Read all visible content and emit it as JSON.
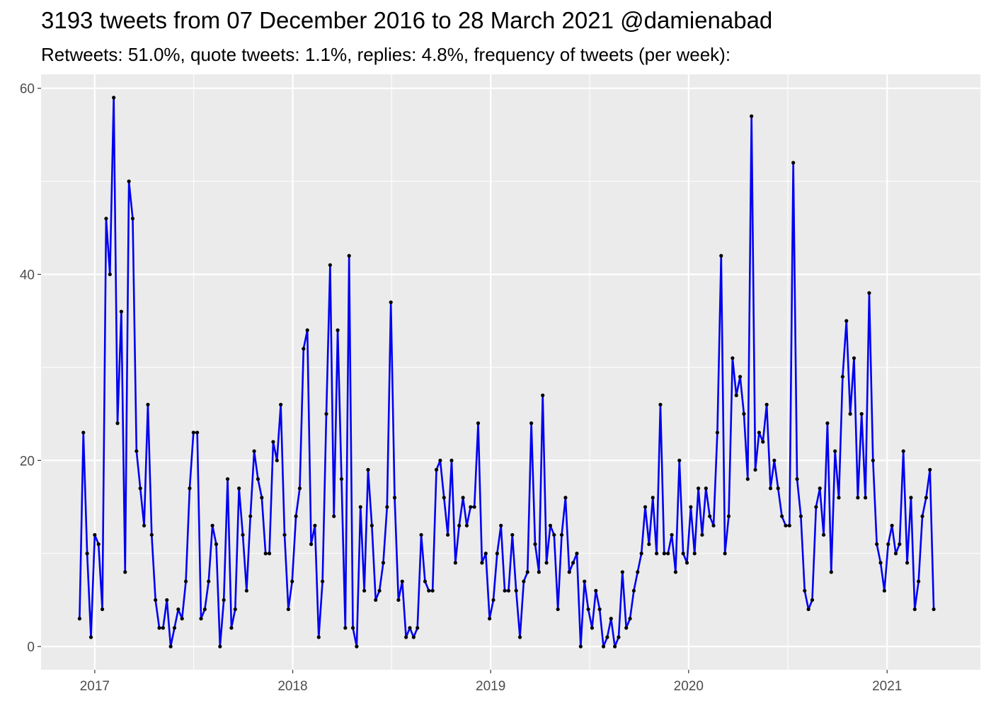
{
  "chart_data": {
    "type": "line",
    "title": "3193 tweets from 07 December 2016 to 28 March 2021 @damienabad",
    "subtitle": "Retweets: 51.0%, quote tweets: 1.1%, replies: 4.8%, frequency of tweets (per week):",
    "xlabel": "",
    "ylabel": "",
    "ylim": [
      -2.5,
      61.5
    ],
    "xlim": [
      "2016-09-24",
      "2021-06-22"
    ],
    "y_ticks": [
      0,
      20,
      40,
      60
    ],
    "y_tick_labels": [
      "0",
      "20",
      "40",
      "60"
    ],
    "x_ticks": [
      "2017-01-01",
      "2018-01-01",
      "2019-01-01",
      "2020-01-01",
      "2021-01-01"
    ],
    "x_tick_labels": [
      "2017",
      "2018",
      "2019",
      "2020",
      "2021"
    ],
    "grid": true,
    "legend": "none",
    "series": [
      {
        "x": [
          "2016-12-04",
          "2016-12-11",
          "2016-12-18",
          "2016-12-25",
          "2017-01-01",
          "2017-01-08",
          "2017-01-15",
          "2017-01-22",
          "2017-01-29",
          "2017-02-05",
          "2017-02-12",
          "2017-02-19",
          "2017-02-26",
          "2017-03-05",
          "2017-03-12",
          "2017-03-19",
          "2017-03-26",
          "2017-04-02",
          "2017-04-09",
          "2017-04-16",
          "2017-04-23",
          "2017-04-30",
          "2017-05-07",
          "2017-05-14",
          "2017-05-21",
          "2017-05-28",
          "2017-06-04",
          "2017-06-11",
          "2017-06-18",
          "2017-06-25",
          "2017-07-02",
          "2017-07-09",
          "2017-07-16",
          "2017-07-23",
          "2017-07-30",
          "2017-08-06",
          "2017-08-13",
          "2017-08-20",
          "2017-08-27",
          "2017-09-03",
          "2017-09-10",
          "2017-09-17",
          "2017-09-24",
          "2017-10-01",
          "2017-10-08",
          "2017-10-15",
          "2017-10-22",
          "2017-10-29",
          "2017-11-05",
          "2017-11-12",
          "2017-11-19",
          "2017-11-26",
          "2017-12-03",
          "2017-12-10",
          "2017-12-17",
          "2017-12-24",
          "2017-12-31",
          "2018-01-07",
          "2018-01-14",
          "2018-01-21",
          "2018-01-28",
          "2018-02-04",
          "2018-02-11",
          "2018-02-18",
          "2018-02-25",
          "2018-03-04",
          "2018-03-11",
          "2018-03-18",
          "2018-03-25",
          "2018-04-01",
          "2018-04-08",
          "2018-04-15",
          "2018-04-22",
          "2018-04-29",
          "2018-05-06",
          "2018-05-13",
          "2018-05-20",
          "2018-05-27",
          "2018-06-03",
          "2018-06-10",
          "2018-06-17",
          "2018-06-24",
          "2018-07-01",
          "2018-07-08",
          "2018-07-15",
          "2018-07-22",
          "2018-07-29",
          "2018-08-05",
          "2018-08-12",
          "2018-08-19",
          "2018-08-26",
          "2018-09-02",
          "2018-09-09",
          "2018-09-16",
          "2018-09-23",
          "2018-09-30",
          "2018-10-07",
          "2018-10-14",
          "2018-10-21",
          "2018-10-28",
          "2018-11-04",
          "2018-11-11",
          "2018-11-18",
          "2018-11-25",
          "2018-12-02",
          "2018-12-09",
          "2018-12-16",
          "2018-12-23",
          "2018-12-30",
          "2019-01-06",
          "2019-01-13",
          "2019-01-20",
          "2019-01-27",
          "2019-02-03",
          "2019-02-10",
          "2019-02-17",
          "2019-02-24",
          "2019-03-03",
          "2019-03-10",
          "2019-03-17",
          "2019-03-24",
          "2019-03-31",
          "2019-04-07",
          "2019-04-14",
          "2019-04-21",
          "2019-04-28",
          "2019-05-05",
          "2019-05-12",
          "2019-05-19",
          "2019-05-26",
          "2019-06-02",
          "2019-06-09",
          "2019-06-16",
          "2019-06-23",
          "2019-06-30",
          "2019-07-07",
          "2019-07-14",
          "2019-07-21",
          "2019-07-28",
          "2019-08-04",
          "2019-08-11",
          "2019-08-18",
          "2019-08-25",
          "2019-09-01",
          "2019-09-08",
          "2019-09-15",
          "2019-09-22",
          "2019-09-29",
          "2019-10-06",
          "2019-10-13",
          "2019-10-20",
          "2019-10-27",
          "2019-11-03",
          "2019-11-10",
          "2019-11-17",
          "2019-11-24",
          "2019-12-01",
          "2019-12-08",
          "2019-12-15",
          "2019-12-22",
          "2019-12-29",
          "2020-01-05",
          "2020-01-12",
          "2020-01-19",
          "2020-01-26",
          "2020-02-02",
          "2020-02-09",
          "2020-02-16",
          "2020-02-23",
          "2020-03-01",
          "2020-03-08",
          "2020-03-15",
          "2020-03-22",
          "2020-03-29",
          "2020-04-05",
          "2020-04-12",
          "2020-04-19",
          "2020-04-26",
          "2020-05-03",
          "2020-05-10",
          "2020-05-17",
          "2020-05-24",
          "2020-05-31",
          "2020-06-07",
          "2020-06-14",
          "2020-06-21",
          "2020-06-28",
          "2020-07-05",
          "2020-07-12",
          "2020-07-19",
          "2020-07-26",
          "2020-08-02",
          "2020-08-09",
          "2020-08-16",
          "2020-08-23",
          "2020-08-30",
          "2020-09-06",
          "2020-09-13",
          "2020-09-20",
          "2020-09-27",
          "2020-10-04",
          "2020-10-11",
          "2020-10-18",
          "2020-10-25",
          "2020-11-01",
          "2020-11-08",
          "2020-11-15",
          "2020-11-22",
          "2020-11-29",
          "2020-12-06",
          "2020-12-13",
          "2020-12-20",
          "2020-12-27",
          "2021-01-03",
          "2021-01-10",
          "2021-01-17",
          "2021-01-24",
          "2021-01-31",
          "2021-02-07",
          "2021-02-14",
          "2021-02-21",
          "2021-02-28",
          "2021-03-07",
          "2021-03-14",
          "2021-03-21",
          "2021-03-28"
        ],
        "y": [
          3,
          23,
          10,
          1,
          12,
          11,
          4,
          46,
          40,
          59,
          24,
          36,
          8,
          50,
          46,
          21,
          17,
          13,
          26,
          12,
          5,
          2,
          2,
          5,
          0,
          2,
          4,
          3,
          7,
          17,
          23,
          23,
          3,
          4,
          7,
          13,
          11,
          0,
          5,
          18,
          2,
          4,
          17,
          12,
          6,
          14,
          21,
          18,
          16,
          10,
          10,
          22,
          20,
          26,
          12,
          4,
          7,
          14,
          17,
          32,
          34,
          11,
          13,
          1,
          7,
          25,
          41,
          14,
          34,
          18,
          2,
          42,
          2,
          0,
          15,
          6,
          19,
          13,
          5,
          6,
          9,
          15,
          37,
          16,
          5,
          7,
          1,
          2,
          1,
          2,
          12,
          7,
          6,
          6,
          19,
          20,
          16,
          12,
          20,
          9,
          13,
          16,
          13,
          15,
          15,
          24,
          9,
          10,
          3,
          5,
          10,
          13,
          6,
          6,
          12,
          6,
          1,
          7,
          8,
          24,
          11,
          8,
          27,
          9,
          13,
          12,
          4,
          12,
          16,
          8,
          9,
          10,
          0,
          7,
          4,
          2,
          6,
          4,
          0,
          1,
          3,
          0,
          1,
          8,
          2,
          3,
          6,
          8,
          10,
          15,
          11,
          16,
          10,
          26,
          10,
          10,
          12,
          8,
          20,
          10,
          9,
          15,
          10,
          17,
          12,
          17,
          14,
          13,
          23,
          42,
          10,
          14,
          31,
          27,
          29,
          25,
          18,
          57,
          19,
          23,
          22,
          26,
          17,
          20,
          17,
          14,
          13,
          13,
          52,
          18,
          14,
          6,
          4,
          5,
          15,
          17,
          12,
          24,
          8,
          21,
          16,
          29,
          35,
          25,
          31,
          16,
          25,
          16,
          38,
          20,
          11,
          9,
          6,
          11,
          13,
          10,
          11,
          21,
          9,
          16,
          4,
          7,
          14,
          16,
          19,
          4
        ]
      }
    ],
    "colors": {
      "line": "#0000ee",
      "point": "#000000",
      "panel": "#ebebeb",
      "grid": "#ffffff"
    }
  }
}
